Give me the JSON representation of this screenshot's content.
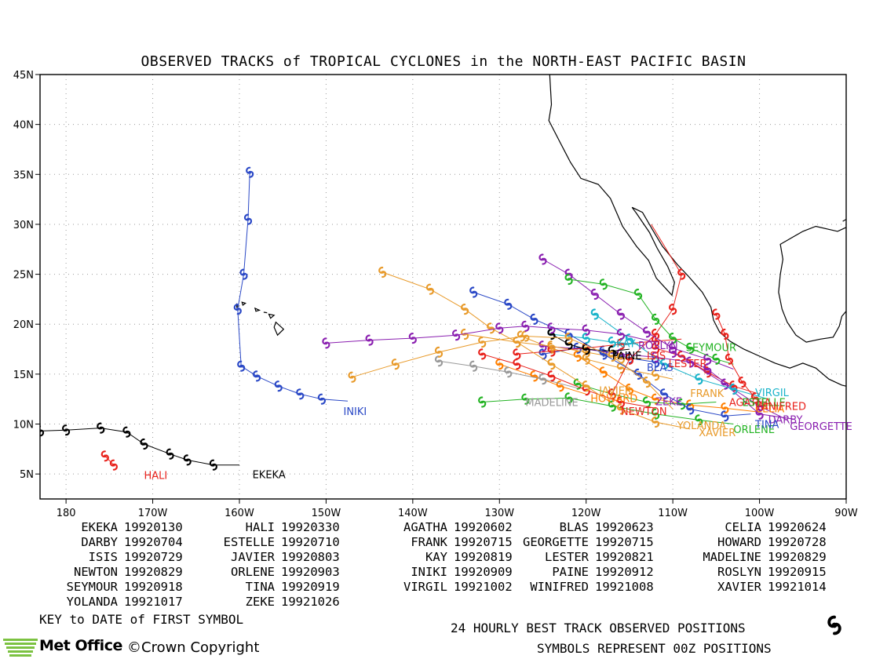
{
  "title": "OBSERVED TRACKS of TROPICAL CYCLONES in the NORTH-EAST PACIFIC BASIN",
  "map": {
    "lon_range": [
      -183,
      -90
    ],
    "lat_range": [
      2.5,
      45
    ],
    "lon_ticks": [
      {
        "lon": -180,
        "label": "180"
      },
      {
        "lon": -170,
        "label": "170W"
      },
      {
        "lon": -160,
        "label": "160W"
      },
      {
        "lon": -150,
        "label": "150W"
      },
      {
        "lon": -140,
        "label": "140W"
      },
      {
        "lon": -130,
        "label": "130W"
      },
      {
        "lon": -120,
        "label": "120W"
      },
      {
        "lon": -110,
        "label": "110W"
      },
      {
        "lon": -100,
        "label": "100W"
      },
      {
        "lon": -90,
        "label": "90W"
      }
    ],
    "lat_ticks": [
      {
        "lat": 5,
        "label": "5N"
      },
      {
        "lat": 10,
        "label": "10N"
      },
      {
        "lat": 15,
        "label": "15N"
      },
      {
        "lat": 20,
        "label": "20N"
      },
      {
        "lat": 25,
        "label": "25N"
      },
      {
        "lat": 30,
        "label": "30N"
      },
      {
        "lat": 35,
        "label": "35N"
      },
      {
        "lat": 40,
        "label": "40N"
      },
      {
        "lat": 45,
        "label": "45N"
      }
    ],
    "grid": true,
    "coastline_color": "#000000"
  },
  "tracks": [
    {
      "name": "EKEKA",
      "color": "#000000",
      "label_pos": [
        -158.5,
        4.6
      ],
      "points": [
        [
          -183,
          9.3
        ],
        [
          -180,
          9.4
        ],
        [
          -176,
          9.6
        ],
        [
          -173,
          9.2
        ],
        [
          -171,
          8.0
        ],
        [
          -168,
          7.0
        ],
        [
          -166,
          6.4
        ],
        [
          -163,
          5.9
        ],
        [
          -160,
          5.9
        ]
      ]
    },
    {
      "name": "HALI",
      "color": "#e8211b",
      "label_pos": [
        -171,
        4.5
      ],
      "points": [
        [
          -175.5,
          6.8
        ],
        [
          -174.5,
          5.9
        ]
      ]
    },
    {
      "name": "INIKI",
      "color": "#2a48c6",
      "label_pos": [
        -148,
        10.9
      ],
      "points": [
        [
          -158.8,
          35.2
        ],
        [
          -159,
          30.5
        ],
        [
          -159.5,
          25
        ],
        [
          -160.2,
          21.5
        ],
        [
          -159.8,
          15.8
        ],
        [
          -158,
          14.8
        ],
        [
          -155.5,
          13.8
        ],
        [
          -153,
          13.0
        ],
        [
          -150.5,
          12.5
        ],
        [
          -147.5,
          12.3
        ]
      ]
    },
    {
      "name": "AGATHA",
      "color": "#e8211b",
      "label_pos": [
        -103.5,
        11.8
      ],
      "points": [
        [
          -112,
          17.6
        ],
        [
          -109,
          16.8
        ],
        [
          -106,
          15.2
        ],
        [
          -103,
          13.8
        ],
        [
          -100,
          13.0
        ]
      ]
    },
    {
      "name": "BLAS",
      "color": "#2a48c6",
      "label_pos": [
        -113,
        15.3
      ],
      "points": [
        [
          -125,
          17.0
        ],
        [
          -121,
          17.6
        ],
        [
          -118,
          17.3
        ],
        [
          -115,
          16.6
        ],
        [
          -112,
          16.2
        ],
        [
          -110,
          15.8
        ]
      ]
    },
    {
      "name": "CELIA",
      "color": "#ff7f00",
      "label_pos": [
        -100.5,
        11.2
      ],
      "points": [
        [
          -121,
          16.8
        ],
        [
          -118,
          15.2
        ],
        [
          -115,
          13.5
        ],
        [
          -112,
          12.5
        ],
        [
          -108,
          11.9
        ],
        [
          -104,
          11.6
        ],
        [
          -100,
          11.2
        ]
      ]
    },
    {
      "name": "DARBY",
      "color": "#8a1fb0",
      "label_pos": [
        -99,
        10.1
      ],
      "points": [
        [
          -110,
          17.2
        ],
        [
          -106,
          15.5
        ],
        [
          -103,
          13.5
        ],
        [
          -100,
          11.8
        ],
        [
          -97,
          10.5
        ]
      ]
    },
    {
      "name": "ESTELLE",
      "color": "#23b323",
      "label_pos": [
        -102,
        11.8
      ],
      "points": [
        [
          -121,
          14.0
        ],
        [
          -117,
          13.0
        ],
        [
          -113,
          12.2
        ],
        [
          -109,
          12.0
        ],
        [
          -105,
          12.2
        ]
      ]
    },
    {
      "name": "FRANK",
      "color": "#e89a2a",
      "label_pos": [
        -108,
        12.7
      ],
      "points": [
        [
          -127.5,
          18.8
        ],
        [
          -124,
          17.6
        ],
        [
          -120,
          16.5
        ],
        [
          -116,
          15.6
        ],
        [
          -112,
          14.9
        ],
        [
          -110,
          14.5
        ]
      ]
    },
    {
      "name": "GEORGETTE",
      "color": "#8a1fb0",
      "label_pos": [
        -96.5,
        9.4
      ],
      "points": [
        [
          -125,
          17.8
        ],
        [
          -120,
          17.5
        ],
        [
          -116,
          17.0
        ],
        [
          -112,
          16.7
        ],
        [
          -108,
          16.2
        ],
        [
          -104,
          14.0
        ],
        [
          -100,
          11.0
        ],
        [
          -96,
          10.5
        ]
      ]
    },
    {
      "name": "HOWARD",
      "color": "#ff7f00",
      "label_pos": [
        -119.5,
        12.2
      ],
      "points": [
        [
          -130,
          16.0
        ],
        [
          -126,
          14.8
        ],
        [
          -123,
          13.8
        ],
        [
          -120,
          13.0
        ]
      ]
    },
    {
      "name": "ISIS",
      "color": "#e8211b",
      "label_pos": [
        -113,
        16.5
      ],
      "points": [
        [
          -128,
          17.0
        ],
        [
          -124,
          17.3
        ],
        [
          -120,
          17.6
        ],
        [
          -116,
          18.0
        ],
        [
          -112,
          18.3
        ],
        [
          -109,
          18.5
        ]
      ]
    },
    {
      "name": "JAVIER",
      "color": "#e89a2a",
      "label_pos": [
        -118.5,
        13.0
      ],
      "points": [
        [
          -134,
          19.0
        ],
        [
          -128,
          18.2
        ],
        [
          -124,
          17.8
        ],
        [
          -120,
          17.2
        ],
        [
          -116,
          16.6
        ],
        [
          -112,
          16.5
        ]
      ]
    },
    {
      "name": "KAY",
      "color": "#18b3c9",
      "label_pos": [
        -116.5,
        17.7
      ],
      "points": [
        [
          -124,
          19.0
        ],
        [
          -120,
          18.6
        ],
        [
          -117,
          18.2
        ],
        [
          -114,
          18.0
        ]
      ]
    },
    {
      "name": "LESTER",
      "color": "#e8211b",
      "label_pos": [
        -110.5,
        15.7
      ],
      "points": [
        [
          -117,
          13.0
        ],
        [
          -115,
          16.5
        ],
        [
          -112,
          19.0
        ],
        [
          -110,
          21.5
        ],
        [
          -109,
          25
        ],
        [
          -112.5,
          30.0
        ]
      ]
    },
    {
      "name": "MADELINE",
      "color": "#999999",
      "label_pos": [
        -127,
        11.8
      ],
      "points": [
        [
          -137,
          16.3
        ],
        [
          -133,
          15.8
        ],
        [
          -129,
          15.2
        ],
        [
          -125,
          14.5
        ],
        [
          -121,
          13.6
        ]
      ]
    },
    {
      "name": "NEWTON",
      "color": "#e8211b",
      "label_pos": [
        -116,
        10.9
      ],
      "points": [
        [
          -132,
          17.0
        ],
        [
          -128,
          16.0
        ],
        [
          -124,
          14.8
        ],
        [
          -120,
          13.4
        ],
        [
          -116,
          12.2
        ],
        [
          -112,
          11.6
        ]
      ]
    },
    {
      "name": "ORLENE",
      "color": "#23b323",
      "label_pos": [
        -103,
        9.1
      ],
      "points": [
        [
          -132,
          12.2
        ],
        [
          -127,
          12.5
        ],
        [
          -122,
          12.6
        ],
        [
          -117,
          11.8
        ],
        [
          -112,
          11.0
        ],
        [
          -107,
          10.4
        ],
        [
          -103,
          10.0
        ]
      ]
    },
    {
      "name": "PAINE",
      "color": "#000000",
      "label_pos": [
        -117,
        16.5
      ],
      "points": [
        [
          -124,
          19.0
        ],
        [
          -122,
          18.0
        ],
        [
          -120,
          17.5
        ],
        [
          -117,
          17.3
        ],
        [
          -115,
          17.5
        ]
      ]
    },
    {
      "name": "ROSLYN",
      "color": "#8a1fb0",
      "label_pos": [
        -114,
        17.5
      ],
      "points": [
        [
          -125,
          26.5
        ],
        [
          -122,
          25
        ],
        [
          -119,
          23
        ],
        [
          -116,
          21
        ],
        [
          -113,
          19.2
        ],
        [
          -110,
          17.6
        ],
        [
          -106,
          16.5
        ],
        [
          -103,
          15.5
        ]
      ]
    },
    {
      "name": "SEYMOUR",
      "color": "#23b323",
      "label_pos": [
        -108.5,
        17.3
      ],
      "points": [
        [
          -122,
          24.5
        ],
        [
          -118,
          24.0
        ],
        [
          -114,
          23.0
        ],
        [
          -112,
          20.5
        ],
        [
          -110,
          18.6
        ],
        [
          -108,
          17.6
        ],
        [
          -105,
          16.5
        ],
        [
          -103,
          16.0
        ]
      ]
    },
    {
      "name": "TINA",
      "color": "#2a48c6",
      "label_pos": [
        -100.5,
        9.6
      ],
      "points": [
        [
          -133,
          23.2
        ],
        [
          -129,
          22.0
        ],
        [
          -126,
          20.5
        ],
        [
          -122,
          19.0
        ],
        [
          -118,
          17.0
        ],
        [
          -114,
          15.0
        ],
        [
          -111,
          13.0
        ],
        [
          -108,
          11.5
        ],
        [
          -104,
          10.8
        ],
        [
          -101,
          11.0
        ]
      ]
    },
    {
      "name": "VIRGIL",
      "color": "#18b3c9",
      "label_pos": [
        -100.5,
        12.8
      ],
      "points": [
        [
          -119,
          21.0
        ],
        [
          -115,
          18.5
        ],
        [
          -111,
          16.0
        ],
        [
          -107,
          14.5
        ],
        [
          -103,
          13.5
        ],
        [
          -99,
          12.5
        ]
      ]
    },
    {
      "name": "WINIFRED",
      "color": "#e8211b",
      "label_pos": [
        -100.5,
        11.4
      ],
      "points": [
        [
          -105,
          21.0
        ],
        [
          -104,
          19.0
        ],
        [
          -103.5,
          16.5
        ],
        [
          -102,
          14.2
        ],
        [
          -100.5,
          12.6
        ],
        [
          -99,
          11.5
        ]
      ]
    },
    {
      "name": "XAVIER",
      "color": "#e89a2a",
      "label_pos": [
        -107,
        8.8
      ],
      "points": [
        [
          -143.5,
          25.2
        ],
        [
          -138,
          23.5
        ],
        [
          -134,
          21.5
        ],
        [
          -131,
          19.6
        ],
        [
          -128,
          18.2
        ],
        [
          -124,
          16.0
        ],
        [
          -120,
          13.8
        ],
        [
          -116,
          11.5
        ],
        [
          -112,
          10.2
        ],
        [
          -108,
          9.5
        ]
      ]
    },
    {
      "name": "YOLANDA",
      "color": "#e89a2a",
      "label_pos": [
        -109.5,
        9.5
      ],
      "points": [
        [
          -147,
          14.7
        ],
        [
          -142,
          16.0
        ],
        [
          -137,
          17.2
        ],
        [
          -132,
          18.2
        ],
        [
          -127,
          18.8
        ],
        [
          -122,
          18.6
        ],
        [
          -117,
          16.8
        ],
        [
          -113,
          14.2
        ],
        [
          -110,
          11.5
        ]
      ]
    },
    {
      "name": "ZEKE",
      "color": "#8a1fb0",
      "label_pos": [
        -112,
        11.9
      ],
      "points": [
        [
          -150,
          18.1
        ],
        [
          -145,
          18.4
        ],
        [
          -140,
          18.6
        ],
        [
          -135,
          18.9
        ],
        [
          -130,
          19.6
        ],
        [
          -127,
          19.8
        ],
        [
          -124,
          19.6
        ],
        [
          -120,
          19.4
        ],
        [
          -116,
          19.0
        ],
        [
          -112,
          18.2
        ]
      ]
    }
  ],
  "key_entries": [
    {
      "name": "EKEKA",
      "date": "19920130"
    },
    {
      "name": "HALI",
      "date": "19920330"
    },
    {
      "name": "AGATHA",
      "date": "19920602"
    },
    {
      "name": "BLAS",
      "date": "19920623"
    },
    {
      "name": "CELIA",
      "date": "19920624"
    },
    {
      "name": "DARBY",
      "date": "19920704"
    },
    {
      "name": "ESTELLE",
      "date": "19920710"
    },
    {
      "name": "FRANK",
      "date": "19920715"
    },
    {
      "name": "GEORGETTE",
      "date": "19920715"
    },
    {
      "name": "HOWARD",
      "date": "19920728"
    },
    {
      "name": "ISIS",
      "date": "19920729"
    },
    {
      "name": "JAVIER",
      "date": "19920803"
    },
    {
      "name": "KAY",
      "date": "19920819"
    },
    {
      "name": "LESTER",
      "date": "19920821"
    },
    {
      "name": "MADELINE",
      "date": "19920829"
    },
    {
      "name": "NEWTON",
      "date": "19920829"
    },
    {
      "name": "ORLENE",
      "date": "19920903"
    },
    {
      "name": "INIKI",
      "date": "19920909"
    },
    {
      "name": "PAINE",
      "date": "19920912"
    },
    {
      "name": "ROSLYN",
      "date": "19920915"
    },
    {
      "name": "SEYMOUR",
      "date": "19920918"
    },
    {
      "name": "TINA",
      "date": "19920919"
    },
    {
      "name": "VIRGIL",
      "date": "19921002"
    },
    {
      "name": "WINIFRED",
      "date": "19921008"
    },
    {
      "name": "XAVIER",
      "date": "19921014"
    },
    {
      "name": "YOLANDA",
      "date": "19921017"
    },
    {
      "name": "ZEKE",
      "date": "19921026"
    }
  ],
  "key_note": "KEY to DATE of FIRST SYMBOL",
  "footnote_line1": "24 HOURLY BEST TRACK OBSERVED POSITIONS",
  "footnote_line2": "SYMBOLS REPRESENT 00Z POSITIONS",
  "logo_text": "Met Office",
  "copyright": "©Crown Copyright",
  "legend_symbol_icon": "hurricane-symbol-icon"
}
